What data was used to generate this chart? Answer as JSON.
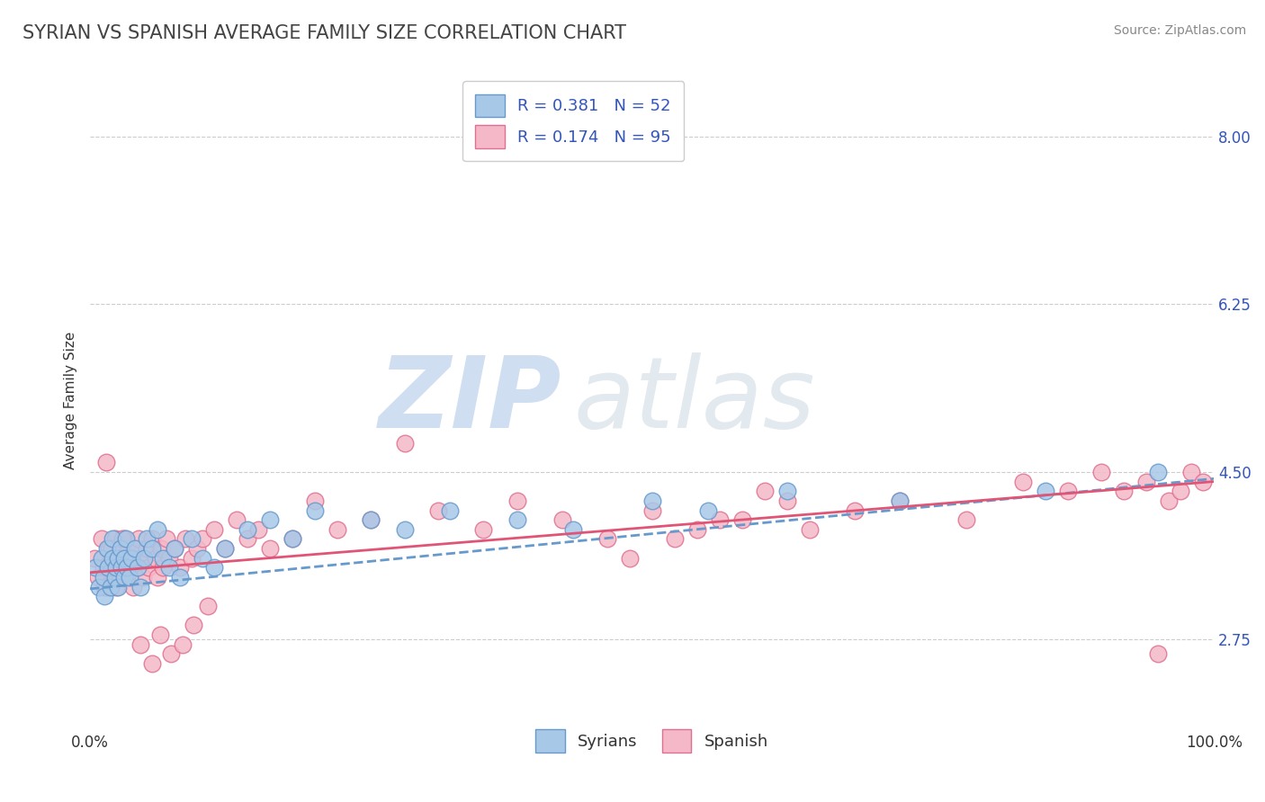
{
  "title": "SYRIAN VS SPANISH AVERAGE FAMILY SIZE CORRELATION CHART",
  "source_text": "Source: ZipAtlas.com",
  "ylabel": "Average Family Size",
  "xlim": [
    0.0,
    1.0
  ],
  "ylim": [
    1.8,
    8.7
  ],
  "yticks": [
    2.75,
    4.5,
    6.25,
    8.0
  ],
  "legend_entries": [
    {
      "label": "R = 0.381   N = 52"
    },
    {
      "label": "R = 0.174   N = 95"
    }
  ],
  "legend_bottom_labels": [
    "Syrians",
    "Spanish"
  ],
  "syrian_color": "#a8c8e8",
  "syrian_edge_color": "#6699cc",
  "spanish_color": "#f4b8c8",
  "spanish_edge_color": "#e07090",
  "syrian_line_color": "#6699cc",
  "spanish_line_color": "#e05575",
  "legend_text_color": "#3355bb",
  "watermark": "ZIPatlas",
  "watermark_color": "#d0dcf0",
  "title_fontsize": 15,
  "axis_label_fontsize": 11,
  "tick_label_fontsize": 12,
  "legend_fontsize": 13,
  "grid_color": "#cccccc",
  "background_color": "#ffffff",
  "syrian_line_intercept": 3.28,
  "syrian_line_slope": 1.15,
  "spanish_line_intercept": 3.45,
  "spanish_line_slope": 0.95,
  "syrian_points_x": [
    0.005,
    0.008,
    0.01,
    0.012,
    0.013,
    0.015,
    0.016,
    0.018,
    0.02,
    0.02,
    0.022,
    0.023,
    0.025,
    0.025,
    0.027,
    0.028,
    0.03,
    0.03,
    0.032,
    0.033,
    0.035,
    0.037,
    0.04,
    0.042,
    0.045,
    0.048,
    0.05,
    0.055,
    0.06,
    0.065,
    0.07,
    0.075,
    0.08,
    0.09,
    0.1,
    0.11,
    0.12,
    0.14,
    0.16,
    0.18,
    0.2,
    0.25,
    0.28,
    0.32,
    0.38,
    0.43,
    0.5,
    0.55,
    0.62,
    0.72,
    0.85,
    0.95
  ],
  "syrian_points_y": [
    3.5,
    3.3,
    3.6,
    3.4,
    3.2,
    3.7,
    3.5,
    3.3,
    3.6,
    3.8,
    3.4,
    3.5,
    3.6,
    3.3,
    3.7,
    3.5,
    3.4,
    3.6,
    3.8,
    3.5,
    3.4,
    3.6,
    3.7,
    3.5,
    3.3,
    3.6,
    3.8,
    3.7,
    3.9,
    3.6,
    3.5,
    3.7,
    3.4,
    3.8,
    3.6,
    3.5,
    3.7,
    3.9,
    4.0,
    3.8,
    4.1,
    4.0,
    3.9,
    4.1,
    4.0,
    3.9,
    4.2,
    4.1,
    4.3,
    4.2,
    4.3,
    4.5
  ],
  "spanish_points_x": [
    0.004,
    0.007,
    0.01,
    0.012,
    0.014,
    0.015,
    0.017,
    0.018,
    0.02,
    0.02,
    0.022,
    0.023,
    0.024,
    0.025,
    0.027,
    0.028,
    0.03,
    0.03,
    0.032,
    0.033,
    0.035,
    0.037,
    0.038,
    0.04,
    0.042,
    0.043,
    0.045,
    0.047,
    0.05,
    0.052,
    0.055,
    0.058,
    0.06,
    0.063,
    0.065,
    0.068,
    0.07,
    0.075,
    0.08,
    0.085,
    0.09,
    0.095,
    0.1,
    0.11,
    0.12,
    0.13,
    0.14,
    0.15,
    0.16,
    0.18,
    0.013,
    0.016,
    0.019,
    0.021,
    0.026,
    0.029,
    0.034,
    0.2,
    0.22,
    0.25,
    0.28,
    0.31,
    0.35,
    0.38,
    0.42,
    0.46,
    0.5,
    0.54,
    0.58,
    0.62,
    0.48,
    0.52,
    0.56,
    0.6,
    0.64,
    0.68,
    0.72,
    0.78,
    0.83,
    0.87,
    0.9,
    0.92,
    0.94,
    0.95,
    0.96,
    0.97,
    0.98,
    0.99,
    0.045,
    0.055,
    0.062,
    0.072,
    0.082,
    0.092,
    0.105
  ],
  "spanish_points_y": [
    3.6,
    3.4,
    3.8,
    3.5,
    4.6,
    3.3,
    3.7,
    3.5,
    3.4,
    3.6,
    3.8,
    3.3,
    3.6,
    3.5,
    3.7,
    3.4,
    3.6,
    3.8,
    3.5,
    3.7,
    3.4,
    3.6,
    3.3,
    3.7,
    3.5,
    3.8,
    3.6,
    3.4,
    3.7,
    3.5,
    3.8,
    3.6,
    3.4,
    3.7,
    3.5,
    3.8,
    3.6,
    3.7,
    3.5,
    3.8,
    3.6,
    3.7,
    3.8,
    3.9,
    3.7,
    4.0,
    3.8,
    3.9,
    3.7,
    3.8,
    3.3,
    3.5,
    3.7,
    3.4,
    3.6,
    3.8,
    3.5,
    4.2,
    3.9,
    4.0,
    4.8,
    4.1,
    3.9,
    4.2,
    4.0,
    3.8,
    4.1,
    3.9,
    4.0,
    4.2,
    3.6,
    3.8,
    4.0,
    4.3,
    3.9,
    4.1,
    4.2,
    4.0,
    4.4,
    4.3,
    4.5,
    4.3,
    4.4,
    2.6,
    4.2,
    4.3,
    4.5,
    4.4,
    2.7,
    2.5,
    2.8,
    2.6,
    2.7,
    2.9,
    3.1
  ]
}
